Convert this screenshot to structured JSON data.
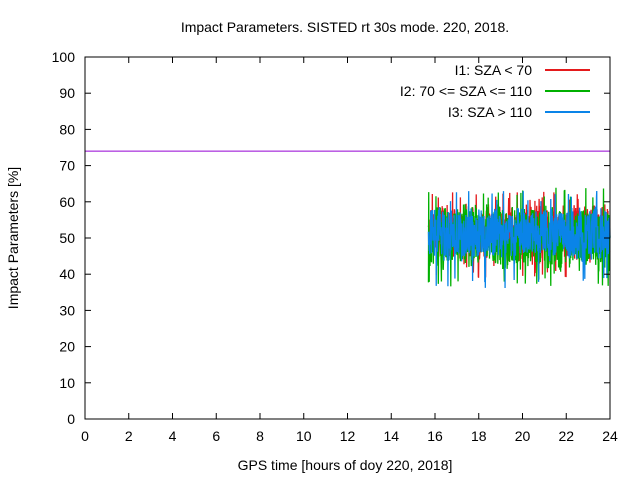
{
  "chart_data": {
    "type": "line",
    "title": "Impact Parameters. SISTED rt 30s mode. 220, 2018.",
    "xlabel": "GPS time [hours of doy 220, 2018]",
    "ylabel": "Impact Parameters [%]",
    "xlim": [
      0,
      24
    ],
    "ylim": [
      0,
      100
    ],
    "xticks": [
      0,
      2,
      4,
      6,
      8,
      10,
      12,
      14,
      16,
      18,
      20,
      22,
      24
    ],
    "yticks": [
      0,
      10,
      20,
      30,
      40,
      50,
      60,
      70,
      80,
      90,
      100
    ],
    "grid": false,
    "legend_position": "top-right",
    "reference_line": {
      "y": 74,
      "color": "#9400d3"
    },
    "series": [
      {
        "name": "I1: SZA < 70",
        "color": "#e41a1c",
        "x_range": [
          15.7,
          24
        ],
        "center": 51,
        "spread": 9,
        "min": 39,
        "max": 63
      },
      {
        "name": "I2: 70 <= SZA <= 110",
        "color": "#00b000",
        "x_range": [
          15.7,
          24
        ],
        "center": 50,
        "spread": 10,
        "min": 36,
        "max": 64
      },
      {
        "name": "I3: SZA > 110",
        "color": "#0a84e8",
        "x_range": [
          15.7,
          24
        ],
        "center": 51,
        "spread": 8,
        "min": 36,
        "max": 63
      }
    ]
  }
}
